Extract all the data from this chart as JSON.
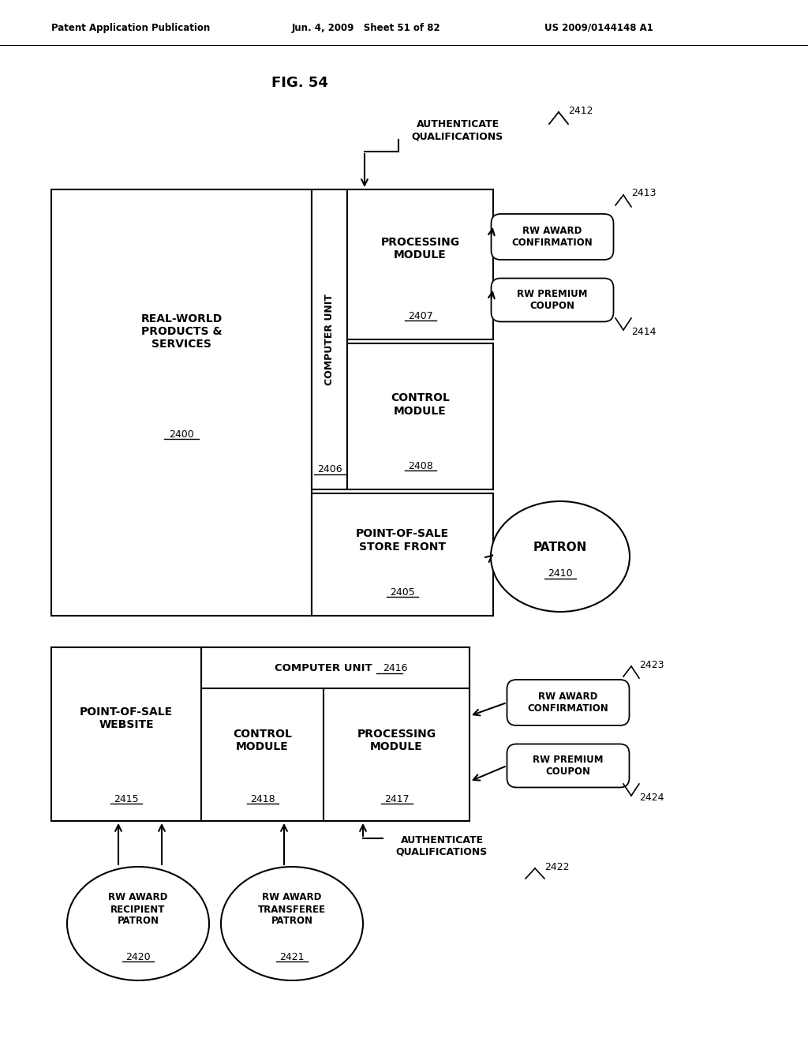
{
  "title": "FIG. 54",
  "header_left": "Patent Application Publication",
  "header_mid": "Jun. 4, 2009   Sheet 51 of 82",
  "header_right": "US 2009/0144148 A1",
  "bg_color": "#ffffff",
  "text_color": "#000000"
}
